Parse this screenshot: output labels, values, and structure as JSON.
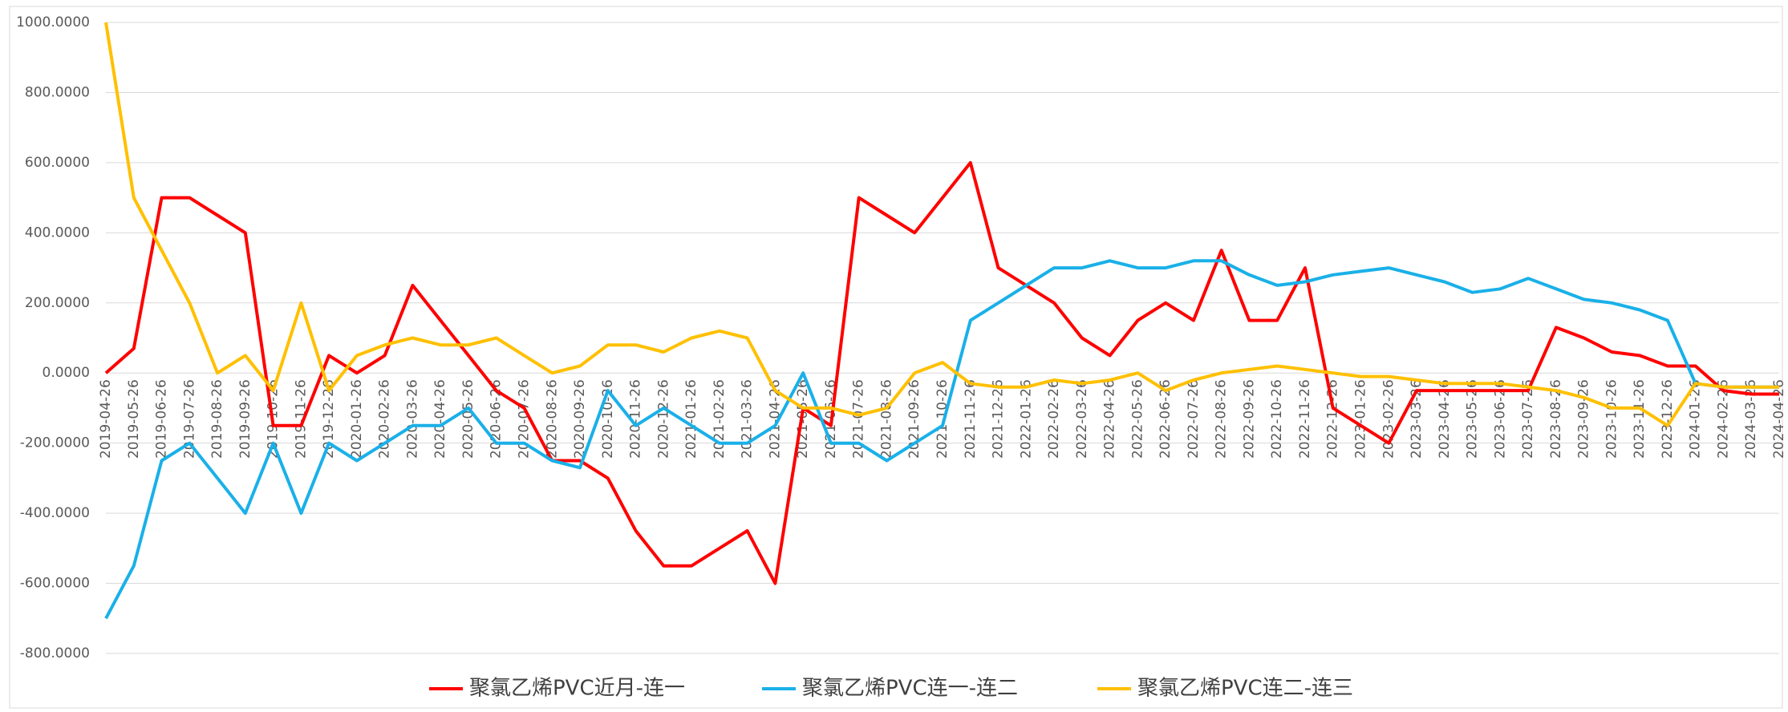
{
  "chart_data": {
    "type": "line",
    "categories": [
      "2019-04-26",
      "2019-05-26",
      "2019-06-26",
      "2019-07-26",
      "2019-08-26",
      "2019-09-26",
      "2019-10-26",
      "2019-11-26",
      "2019-12-26",
      "2020-01-26",
      "2020-02-26",
      "2020-03-26",
      "2020-04-26",
      "2020-05-26",
      "2020-06-26",
      "2020-07-26",
      "2020-08-26",
      "2020-09-26",
      "2020-10-26",
      "2020-11-26",
      "2020-12-26",
      "2021-01-26",
      "2021-02-26",
      "2021-03-26",
      "2021-04-26",
      "2021-05-26",
      "2021-06-26",
      "2021-07-26",
      "2021-08-26",
      "2021-09-26",
      "2021-10-26",
      "2021-11-26",
      "2021-12-26",
      "2022-01-26",
      "2022-02-26",
      "2022-03-26",
      "2022-04-26",
      "2022-05-26",
      "2022-06-26",
      "2022-07-26",
      "2022-08-26",
      "2022-09-26",
      "2022-10-26",
      "2022-11-26",
      "2022-12-26",
      "2023-01-26",
      "2023-02-26",
      "2023-03-26",
      "2023-04-26",
      "2023-05-26",
      "2023-06-26",
      "2023-07-26",
      "2023-08-26",
      "2023-09-26",
      "2023-10-26",
      "2023-11-26",
      "2023-12-26",
      "2024-01-26",
      "2024-02-26",
      "2024-03-26",
      "2024-04-26"
    ],
    "series": [
      {
        "name": "聚氯乙烯PVC近月-连一",
        "color": "#ff0000",
        "values": [
          0,
          70,
          500,
          500,
          450,
          400,
          -150,
          -150,
          50,
          0,
          50,
          250,
          150,
          50,
          -50,
          -100,
          -250,
          -250,
          -300,
          -450,
          -550,
          -550,
          -500,
          -450,
          -600,
          -100,
          -150,
          500,
          450,
          400,
          500,
          600,
          300,
          250,
          200,
          100,
          50,
          150,
          200,
          150,
          350,
          150,
          150,
          300,
          -100,
          -150,
          -200,
          -50,
          -50,
          -50,
          -50,
          -50,
          130,
          100,
          60,
          50,
          20,
          20,
          -50,
          -60,
          -60
        ]
      },
      {
        "name": "聚氯乙烯PVC连一-连二",
        "color": "#1ab0e8",
        "values": [
          -700,
          -550,
          -250,
          -200,
          -300,
          -400,
          -200,
          -400,
          -200,
          -250,
          -200,
          -150,
          -150,
          -100,
          -200,
          -200,
          -250,
          -270,
          -50,
          -150,
          -100,
          -150,
          -200,
          -200,
          -150,
          0,
          -200,
          -200,
          -250,
          -200,
          -150,
          150,
          200,
          250,
          300,
          300,
          320,
          300,
          300,
          320,
          320,
          280,
          250,
          260,
          280,
          290,
          300,
          280,
          260,
          230,
          240,
          270,
          240,
          210,
          200,
          180,
          150,
          -30,
          -40,
          -40,
          -40
        ]
      },
      {
        "name": "聚氯乙烯PVC连二-连三",
        "color": "#ffc000",
        "values": [
          1000,
          500,
          350,
          200,
          0,
          50,
          -50,
          200,
          -50,
          50,
          80,
          100,
          80,
          80,
          100,
          50,
          0,
          20,
          80,
          80,
          60,
          100,
          120,
          100,
          -50,
          -100,
          -100,
          -120,
          -100,
          0,
          30,
          -30,
          -40,
          -40,
          -20,
          -30,
          -20,
          0,
          -50,
          -20,
          0,
          10,
          20,
          10,
          0,
          -10,
          -10,
          -20,
          -30,
          -30,
          -30,
          -40,
          -50,
          -70,
          -100,
          -100,
          -150,
          -30,
          -40,
          -40,
          -40
        ]
      }
    ],
    "ylim": [
      -800,
      1000
    ],
    "yticks": [
      {
        "value": -800,
        "label": "-800.0000"
      },
      {
        "value": -600,
        "label": "-600.0000"
      },
      {
        "value": -400,
        "label": "-400.0000"
      },
      {
        "value": -200,
        "label": "-200.0000"
      },
      {
        "value": 0,
        "label": "0.0000"
      },
      {
        "value": 200,
        "label": "200.0000"
      },
      {
        "value": 400,
        "label": "400.0000"
      },
      {
        "value": 600,
        "label": "600.0000"
      },
      {
        "value": 800,
        "label": "800.0000"
      },
      {
        "value": 1000,
        "label": "1000.0000"
      }
    ],
    "grid": true,
    "legend": "bottom"
  }
}
